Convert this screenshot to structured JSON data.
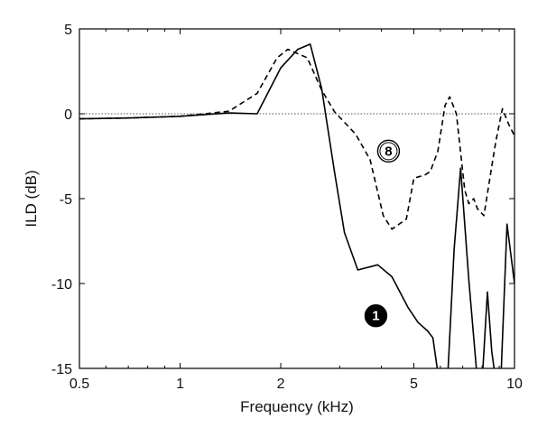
{
  "chart_data": {
    "type": "line",
    "title": "",
    "xlabel": "Frequency (kHz)",
    "ylabel": "ILD (dB)",
    "xscale": "log",
    "xlim": [
      0.5,
      10
    ],
    "ylim": [
      -15,
      5
    ],
    "xticks": [
      0.5,
      1,
      2,
      5,
      10
    ],
    "xtick_labels": [
      "0.5",
      "1",
      "2",
      "5",
      "10"
    ],
    "yticks": [
      5,
      0,
      -5,
      -10,
      -15
    ],
    "ytick_labels": [
      "5",
      "0",
      "-5",
      "-10",
      "-15"
    ],
    "grid": false,
    "reference_line": {
      "y": 0,
      "style": "dotted"
    },
    "series": [
      {
        "name": "1",
        "marker_style": "filled",
        "marker_at": [
          3.85,
          -11.9
        ],
        "line_style": "solid",
        "x": [
          0.5,
          0.7,
          1.0,
          1.4,
          1.7,
          2.0,
          2.25,
          2.45,
          2.65,
          2.9,
          3.1,
          3.4,
          3.9,
          4.3,
          4.8,
          5.15,
          5.5,
          5.7,
          5.95,
          6.3,
          6.6,
          6.9,
          7.3,
          7.75,
          8.0,
          8.3,
          8.55,
          8.8,
          9.1,
          9.5,
          10.0
        ],
        "y": [
          -0.3,
          -0.25,
          -0.15,
          0.05,
          0.0,
          2.7,
          3.8,
          4.1,
          1.5,
          -3.5,
          -7.0,
          -9.2,
          -8.9,
          -9.6,
          -11.4,
          -12.3,
          -12.8,
          -13.2,
          -15.8,
          -15.8,
          -8.0,
          -3.2,
          -9.8,
          -15.8,
          -15.8,
          -10.5,
          -14.0,
          -15.8,
          -15.8,
          -6.5,
          -10.0
        ]
      },
      {
        "name": "8",
        "marker_style": "open",
        "marker_at": [
          4.2,
          -2.2
        ],
        "line_style": "dashed",
        "x": [
          0.5,
          0.7,
          1.0,
          1.4,
          1.7,
          1.95,
          2.1,
          2.4,
          2.65,
          2.9,
          3.1,
          3.35,
          3.7,
          4.05,
          4.3,
          4.75,
          5.0,
          5.4,
          5.6,
          5.9,
          6.2,
          6.4,
          6.7,
          7.1,
          7.3,
          7.55,
          7.75,
          8.1,
          8.5,
          8.8,
          9.2,
          9.6,
          10.0
        ],
        "y": [
          -0.3,
          -0.25,
          -0.15,
          0.15,
          1.2,
          3.3,
          3.8,
          3.3,
          1.4,
          0.1,
          -0.5,
          -1.2,
          -2.7,
          -6.0,
          -6.8,
          -6.2,
          -3.8,
          -3.6,
          -3.4,
          -2.2,
          0.5,
          1.0,
          0.0,
          -4.5,
          -5.3,
          -5.0,
          -5.6,
          -6.0,
          -3.4,
          -1.6,
          0.3,
          -0.6,
          -1.3
        ]
      }
    ]
  }
}
